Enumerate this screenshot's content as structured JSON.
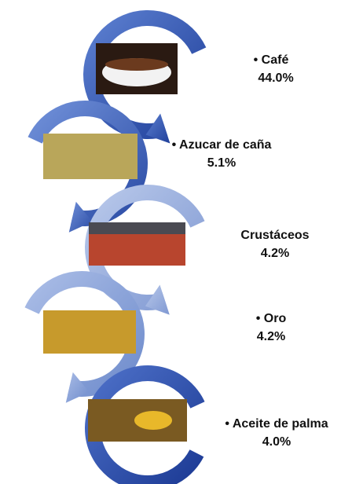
{
  "items": [
    {
      "label": "• Café",
      "share": "44.0%"
    },
    {
      "label": "• Azucar de caña",
      "share": "5.1%"
    },
    {
      "label": "Crustáceos",
      "share": "4.2%"
    },
    {
      "label": "• Oro",
      "share": "4.2%"
    },
    {
      "label": "• Aceite de palma",
      "share": "4.0%"
    }
  ]
}
